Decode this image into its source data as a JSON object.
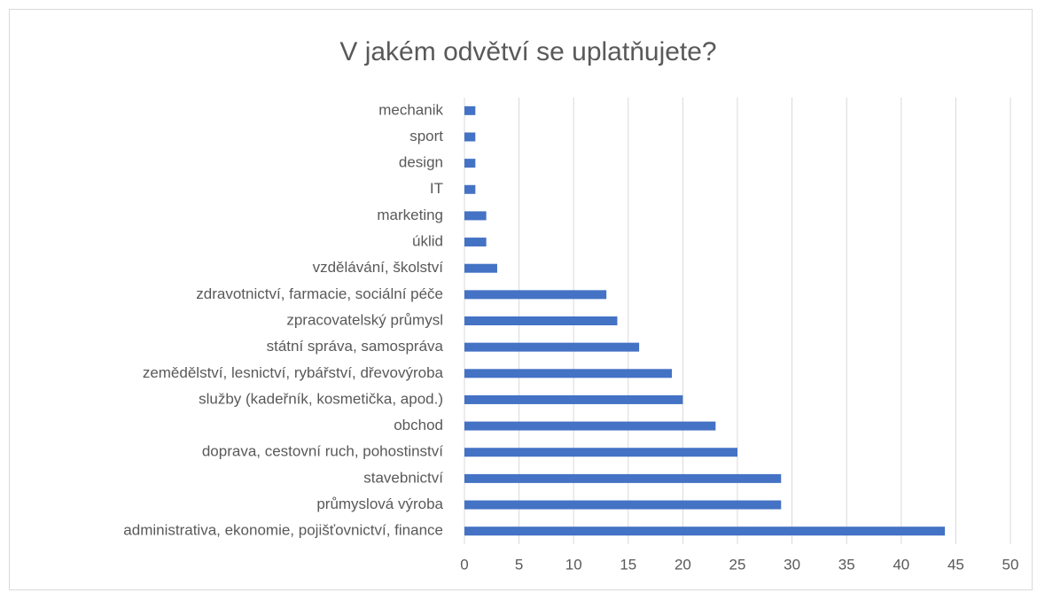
{
  "chart_data": {
    "type": "bar",
    "orientation": "horizontal",
    "title": "V jakém odvětví se uplatňujete?",
    "categories": [
      "mechanik",
      "sport",
      "design",
      "IT",
      "marketing",
      "úklid",
      "vzdělávání, školství",
      "zdravotnictví, farmacie, sociální péče",
      "zpracovatelský průmysl",
      "státní správa, samospráva",
      "zemědělství, lesnictví, rybářství, dřevovýroba",
      "služby (kadeřník, kosmetička, apod.)",
      "obchod",
      "doprava, cestovní ruch, pohostinství",
      "stavebnictví",
      "průmyslová výroba",
      "administrativa, ekonomie, pojišťovnictví, finance"
    ],
    "values": [
      1,
      1,
      1,
      1,
      2,
      2,
      3,
      13,
      14,
      16,
      19,
      20,
      23,
      25,
      29,
      29,
      44
    ],
    "color": "#4472c4",
    "xlim": [
      0,
      50
    ],
    "xticks": [
      0,
      5,
      10,
      15,
      20,
      25,
      30,
      35,
      40,
      45,
      50
    ],
    "grid": true
  }
}
